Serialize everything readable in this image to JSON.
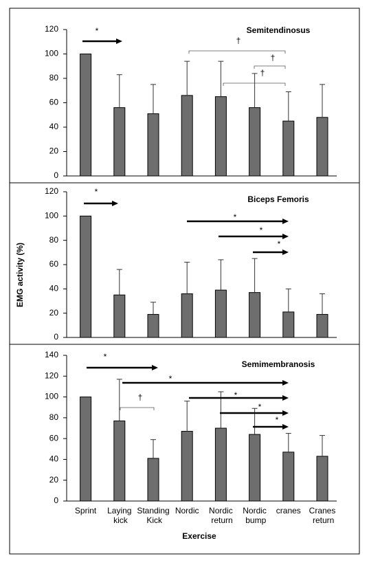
{
  "chart_data": [
    {
      "type": "bar",
      "title": "Semitendinosus",
      "color": "#6e6e6e",
      "values": [
        100,
        56,
        51,
        66,
        65,
        56,
        45,
        48
      ],
      "errors": [
        null,
        27,
        24,
        28,
        29,
        28,
        24,
        27
      ],
      "ylim": [
        0,
        120
      ],
      "yticks": [
        0,
        20,
        40,
        60,
        80,
        100,
        120
      ],
      "annotations": [
        "*",
        "†",
        "†",
        "†"
      ]
    },
    {
      "type": "bar",
      "title": "Biceps Femoris",
      "color": "#6e6e6e",
      "ylabel": "EMG activity (%)",
      "values": [
        100,
        35,
        19,
        36,
        39,
        37,
        21,
        19
      ],
      "errors": [
        null,
        21,
        10,
        26,
        25,
        28,
        19,
        17
      ],
      "ylim": [
        0,
        120
      ],
      "yticks": [
        0,
        20,
        40,
        60,
        80,
        100,
        120
      ],
      "annotations": [
        "*",
        "*",
        "*",
        "*"
      ]
    },
    {
      "type": "bar",
      "title": "Semimembranosis",
      "color": "#6e6e6e",
      "xlabel": "Exercise",
      "categories": [
        "Sprint",
        "Laying kick",
        "Standing Kick",
        "Nordic",
        "Nordic return",
        "Nordic bump",
        "cranes",
        "Cranes return"
      ],
      "values": [
        100,
        77,
        41,
        67,
        70,
        64,
        47,
        43
      ],
      "errors": [
        null,
        40,
        18,
        29,
        35,
        25,
        18,
        20
      ],
      "ylim": [
        0,
        140
      ],
      "yticks": [
        0,
        20,
        40,
        60,
        80,
        100,
        120,
        140
      ],
      "annotations": [
        "*",
        "*",
        "†",
        "*",
        "*",
        "*"
      ]
    }
  ]
}
